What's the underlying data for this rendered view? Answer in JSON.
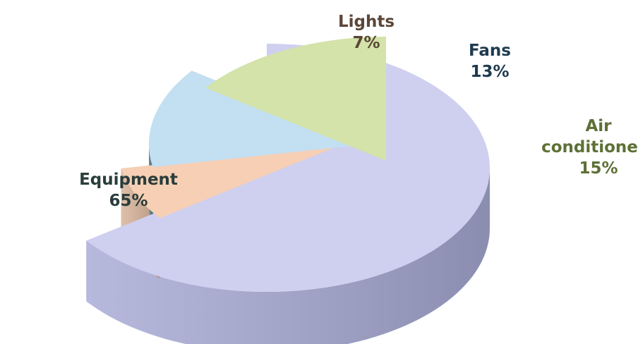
{
  "chart_data": {
    "type": "pie",
    "slices": [
      {
        "label_lines": [
          "Equipment"
        ],
        "value": 65,
        "value_text": "65%",
        "top_color": "#cfcff0",
        "side_color": "#a9acd6",
        "label_color": "#2a3d3a"
      },
      {
        "label_lines": [
          "Lights"
        ],
        "value": 7,
        "value_text": "7%",
        "top_color": "#f6cfb5",
        "side_color": "#d9b49a",
        "label_color": "#5a4638"
      },
      {
        "label_lines": [
          "Fans"
        ],
        "value": 13,
        "value_text": "13%",
        "top_color": "#c3dff2",
        "side_color": "#4f7c87",
        "label_color": "#1f3b50"
      },
      {
        "label_lines": [
          "Air",
          "conditioners"
        ],
        "value": 15,
        "value_text": "15%",
        "top_color": "#d3e3a9",
        "side_color": "#566b50",
        "label_color": "#5e7036"
      }
    ],
    "exploded": true,
    "three_d": true
  }
}
